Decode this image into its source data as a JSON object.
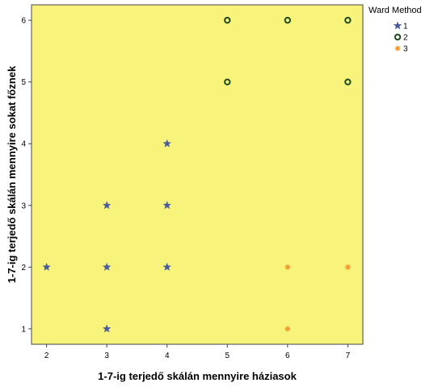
{
  "chart_data": {
    "type": "scatter",
    "xlabel": "1-7-ig terjedő skálán mennyire háziasok",
    "ylabel": "1-7-ig terjedő skálán mennyire sokat főznek",
    "x_ticks": [
      "2",
      "3",
      "4",
      "5",
      "6",
      "7"
    ],
    "y_ticks": [
      "1",
      "2",
      "3",
      "4",
      "5",
      "6"
    ],
    "xlim": [
      1.75,
      7.25
    ],
    "ylim": [
      0.75,
      6.25
    ],
    "grid": false,
    "background_color": "#f8f37a",
    "legend": {
      "title": "Ward Method",
      "placement": "outside-top-right"
    },
    "series": [
      {
        "name": "1",
        "marker": "star",
        "color": "#4a5a9a",
        "points": [
          [
            2,
            2
          ],
          [
            3,
            1
          ],
          [
            3,
            2
          ],
          [
            3,
            3
          ],
          [
            4,
            2
          ],
          [
            4,
            3
          ],
          [
            4,
            4
          ]
        ]
      },
      {
        "name": "2",
        "marker": "circle-open",
        "color": "#1e4a1e",
        "points": [
          [
            5,
            5
          ],
          [
            5,
            6
          ],
          [
            6,
            6
          ],
          [
            7,
            5
          ],
          [
            7,
            6
          ]
        ]
      },
      {
        "name": "3",
        "marker": "asterisk",
        "color": "#f29a2e",
        "points": [
          [
            6,
            1
          ],
          [
            6,
            2
          ],
          [
            7,
            2
          ]
        ]
      }
    ]
  }
}
